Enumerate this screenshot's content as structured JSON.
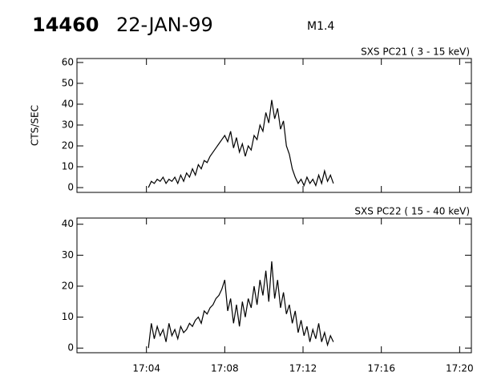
{
  "header": {
    "id": "14460",
    "date": "22-JAN-99",
    "class": "M1.4"
  },
  "chart_data": [
    {
      "type": "line",
      "title": "SXS PC21  (  3 - 15 keV)",
      "y_label": "CTS/SEC",
      "x": [
        4.1,
        4.25,
        4.4,
        4.55,
        4.7,
        4.85,
        5.0,
        5.15,
        5.3,
        5.45,
        5.6,
        5.75,
        5.9,
        6.05,
        6.2,
        6.35,
        6.5,
        6.65,
        6.8,
        6.95,
        7.1,
        7.25,
        7.4,
        7.55,
        7.7,
        7.85,
        8.0,
        8.15,
        8.3,
        8.45,
        8.6,
        8.75,
        8.9,
        9.05,
        9.2,
        9.35,
        9.5,
        9.65,
        9.8,
        9.95,
        10.1,
        10.25,
        10.4,
        10.55,
        10.7,
        10.85,
        11.0,
        11.15,
        11.3,
        11.45,
        11.6,
        11.75,
        11.9,
        12.05,
        12.2,
        12.35,
        12.5,
        12.65,
        12.8,
        12.95,
        13.1,
        13.25,
        13.4,
        13.55
      ],
      "series": [
        {
          "color": "#000000",
          "values": [
            0,
            3,
            2,
            4,
            3,
            5,
            2,
            4,
            3,
            5,
            2,
            6,
            3,
            7,
            5,
            9,
            6,
            11,
            9,
            13,
            12,
            15,
            17,
            19,
            21,
            23,
            25,
            22,
            27,
            19,
            24,
            17,
            21,
            15,
            20,
            18,
            25,
            23,
            30,
            27,
            36,
            31,
            42,
            33,
            38,
            28,
            32,
            20,
            16,
            9,
            5,
            2,
            4,
            1,
            5,
            2,
            4,
            1,
            6,
            2,
            8,
            3,
            6,
            2
          ]
        }
      ],
      "xlim": [
        0.45,
        20.6
      ],
      "ylim": [
        -2.3,
        61.9
      ],
      "yticks": [
        0,
        10,
        20,
        30,
        40,
        50,
        60
      ]
    },
    {
      "type": "line",
      "title": "SXS PC22  ( 15 - 40 keV)",
      "x": [
        4.1,
        4.25,
        4.4,
        4.55,
        4.7,
        4.85,
        5.0,
        5.15,
        5.3,
        5.45,
        5.6,
        5.75,
        5.9,
        6.05,
        6.2,
        6.35,
        6.5,
        6.65,
        6.8,
        6.95,
        7.1,
        7.25,
        7.4,
        7.55,
        7.7,
        7.85,
        8.0,
        8.15,
        8.3,
        8.45,
        8.6,
        8.75,
        8.9,
        9.05,
        9.2,
        9.35,
        9.5,
        9.65,
        9.8,
        9.95,
        10.1,
        10.25,
        10.4,
        10.55,
        10.7,
        10.85,
        11.0,
        11.15,
        11.3,
        11.45,
        11.6,
        11.75,
        11.9,
        12.05,
        12.2,
        12.35,
        12.5,
        12.65,
        12.8,
        12.95,
        13.1,
        13.25,
        13.4,
        13.55
      ],
      "series": [
        {
          "color": "#000000",
          "values": [
            0,
            8,
            3,
            7,
            4,
            6,
            2,
            8,
            4,
            6,
            3,
            7,
            5,
            6,
            8,
            7,
            9,
            10,
            8,
            12,
            11,
            13,
            14,
            16,
            17,
            19,
            22,
            12,
            16,
            8,
            14,
            7,
            15,
            10,
            16,
            13,
            20,
            14,
            22,
            17,
            25,
            15,
            28,
            16,
            22,
            13,
            18,
            11,
            14,
            8,
            12,
            5,
            9,
            4,
            7,
            2,
            6,
            3,
            8,
            2,
            5,
            1,
            4,
            2
          ]
        }
      ],
      "xlim": [
        0.45,
        20.6
      ],
      "ylim": [
        -1.5,
        42
      ],
      "yticks": [
        0,
        10,
        20,
        30,
        40
      ],
      "xticks": [
        {
          "value": 4,
          "label": "17:04"
        },
        {
          "value": 8,
          "label": "17:08"
        },
        {
          "value": 12,
          "label": "17:12"
        },
        {
          "value": 16,
          "label": "17:16"
        },
        {
          "value": 20,
          "label": "17:20"
        }
      ]
    }
  ]
}
